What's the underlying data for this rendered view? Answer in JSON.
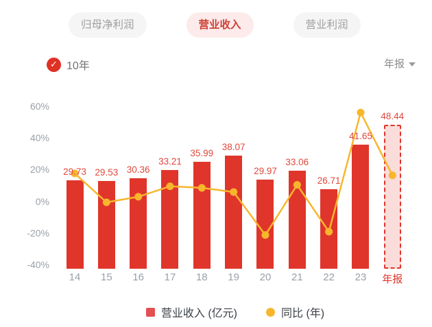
{
  "tabs": [
    {
      "label": "归母净利润",
      "selected": false
    },
    {
      "label": "营业收入",
      "selected": true
    },
    {
      "label": "营业利润",
      "selected": false
    }
  ],
  "controls": {
    "range_label": "10年",
    "range_checked": true,
    "check_glyph": "✓",
    "period_label": "年报"
  },
  "chart_data": {
    "type": "bar",
    "title": "营业收入",
    "categories": [
      "14",
      "15",
      "16",
      "17",
      "18",
      "19",
      "20",
      "21",
      "22",
      "23",
      "年报"
    ],
    "series": [
      {
        "name": "营业收入 (亿元)",
        "type": "bar",
        "values": [
          29.73,
          29.53,
          30.36,
          33.21,
          35.99,
          38.07,
          29.97,
          33.06,
          26.71,
          41.65,
          48.44
        ],
        "data_labels": [
          "29.73",
          "29.53",
          "30.36",
          "33.21",
          "35.99",
          "38.07",
          "29.97",
          "33.06",
          "26.71",
          "41.65",
          "48.44"
        ],
        "forecast_index": 10
      },
      {
        "name": "同比 (年)",
        "type": "line",
        "unit": "%",
        "values": [
          17.5,
          -0.7,
          2.8,
          9.4,
          8.4,
          5.8,
          -21.3,
          10.3,
          -19.2,
          55.9,
          16.3
        ]
      }
    ],
    "yaxis": {
      "ticks": [
        "60%",
        "40%",
        "20%",
        "0%",
        "-20%",
        "-40%"
      ],
      "tick_values": [
        60,
        40,
        20,
        0,
        -20,
        -40
      ],
      "unit": "%",
      "ylim": [
        -45,
        65
      ]
    },
    "grid": false,
    "legend_position": "bottom",
    "colors": {
      "bar": "#e0352b",
      "bar_forecast_fill": "#fadcda",
      "bar_forecast_border": "#e0352b",
      "value_label": "#e0473c",
      "line": "#f8b62d",
      "axis_text": "#9aa0a6",
      "forecast_axis_text": "#e0352b"
    }
  },
  "legend": [
    {
      "label": "营业收入 (亿元)",
      "swatch": "square",
      "color": "#e25051"
    },
    {
      "label": "同比 (年)",
      "swatch": "circle",
      "color": "#f8b62d"
    }
  ]
}
